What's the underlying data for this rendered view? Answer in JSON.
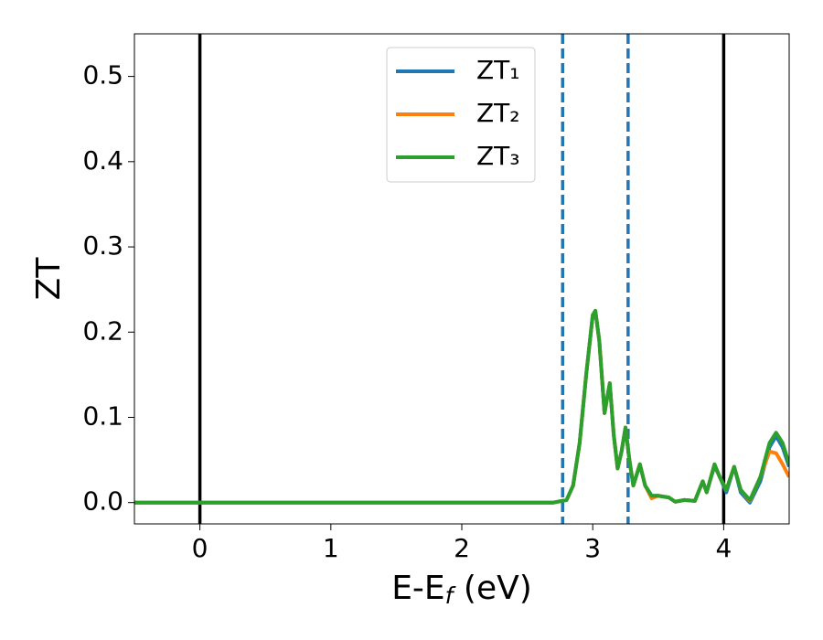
{
  "chart_data": {
    "type": "line",
    "xlabel": {
      "text": "E-E",
      "sub": "f",
      "after": " (eV)"
    },
    "ylabel": "ZT",
    "x": [
      -0.5,
      0,
      1,
      2,
      2.7,
      2.8,
      2.85,
      2.9,
      2.95,
      3.0,
      3.02,
      3.05,
      3.09,
      3.13,
      3.16,
      3.19,
      3.22,
      3.25,
      3.28,
      3.31,
      3.36,
      3.4,
      3.45,
      3.5,
      3.58,
      3.63,
      3.7,
      3.78,
      3.84,
      3.87,
      3.93,
      3.97,
      4.02,
      4.08,
      4.13,
      4.2,
      4.28,
      4.35,
      4.4,
      4.45,
      4.5
    ],
    "series": [
      {
        "name": "ZT₁",
        "color": "#1f77b4",
        "values": [
          0,
          0,
          0,
          0,
          0,
          0.003,
          0.02,
          0.07,
          0.15,
          0.22,
          0.225,
          0.19,
          0.105,
          0.14,
          0.08,
          0.04,
          0.06,
          0.088,
          0.05,
          0.02,
          0.045,
          0.02,
          0.008,
          0.008,
          0.006,
          0.001,
          0.003,
          0.002,
          0.025,
          0.012,
          0.043,
          0.03,
          0.012,
          0.042,
          0.012,
          0.0,
          0.025,
          0.065,
          0.078,
          0.065,
          0.042
        ]
      },
      {
        "name": "ZT₂",
        "color": "#ff7f0e",
        "values": [
          0,
          0,
          0,
          0,
          0,
          0.003,
          0.02,
          0.07,
          0.15,
          0.22,
          0.225,
          0.19,
          0.105,
          0.14,
          0.08,
          0.04,
          0.06,
          0.088,
          0.05,
          0.02,
          0.045,
          0.02,
          0.005,
          0.008,
          0.006,
          0.001,
          0.003,
          0.002,
          0.025,
          0.012,
          0.045,
          0.03,
          0.015,
          0.042,
          0.015,
          0.002,
          0.03,
          0.06,
          0.058,
          0.045,
          0.03
        ]
      },
      {
        "name": "ZT₃",
        "color": "#2ca02c",
        "values": [
          0,
          0,
          0,
          0,
          0,
          0.003,
          0.02,
          0.07,
          0.15,
          0.22,
          0.225,
          0.19,
          0.105,
          0.14,
          0.08,
          0.04,
          0.06,
          0.088,
          0.05,
          0.02,
          0.045,
          0.02,
          0.008,
          0.008,
          0.006,
          0.001,
          0.003,
          0.002,
          0.025,
          0.012,
          0.045,
          0.03,
          0.015,
          0.042,
          0.015,
          0.003,
          0.03,
          0.07,
          0.082,
          0.07,
          0.045
        ]
      }
    ],
    "vlines": [
      {
        "x": 0,
        "color": "#000000",
        "style": "solid"
      },
      {
        "x": 4,
        "color": "#000000",
        "style": "solid"
      },
      {
        "x": 2.77,
        "color": "#1f77b4",
        "style": "dashed"
      },
      {
        "x": 3.27,
        "color": "#1f77b4",
        "style": "dashed"
      }
    ],
    "xlim": [
      -0.5,
      4.5
    ],
    "xticks": [
      0,
      1,
      2,
      3,
      4
    ],
    "ylim": [
      -0.025,
      0.55
    ],
    "yticks": [
      {
        "value": 0,
        "label": "0.0"
      },
      0.1,
      0.2,
      0.3,
      0.4,
      0.5
    ],
    "grid": false,
    "legend": "upper center"
  }
}
